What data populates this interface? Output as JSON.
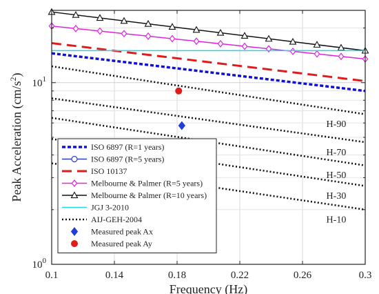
{
  "chart_data": {
    "type": "line",
    "xlabel": "Frequency (Hz)",
    "ylabel": "Peak Acceleration (cm/s",
    "ylabel_sup": "2",
    "ylabel_close": ")",
    "xlim": [
      0.1,
      0.3
    ],
    "ylim": [
      1,
      25
    ],
    "y_scale": "log",
    "grid": true,
    "legend_position": "bottom-left",
    "x_ticks": [
      0.1,
      0.14,
      0.18,
      0.22,
      0.26,
      0.3
    ],
    "x_tick_labels": [
      "0.1",
      "0.14",
      "0.18",
      "0.22",
      "0.26",
      "0.3"
    ],
    "y_ticks": [
      1,
      10
    ],
    "y_tick_base": "10",
    "y_tick_exps": [
      "0",
      "1"
    ],
    "series": [
      {
        "name": "ISO 6897 (R=1 years)",
        "color": "#1010d0",
        "style": "dashed-thick",
        "marker": "none",
        "x": [
          0.1,
          0.3
        ],
        "y": [
          14.5,
          9.0
        ]
      },
      {
        "name": "ISO 6897 (R=5 years)",
        "color": "#2a3fbf",
        "style": "solid",
        "marker": "circle-open",
        "x": [],
        "y": []
      },
      {
        "name": "ISO 10137",
        "color": "#e01b1b",
        "style": "dashed-long",
        "marker": "none",
        "x": [
          0.1,
          0.3
        ],
        "y": [
          16.5,
          10.2
        ]
      },
      {
        "name": "Melbourne & Palmer (R=5 years)",
        "color": "#e020e0",
        "style": "solid",
        "marker": "diamond-open",
        "x": [
          0.1,
          0.3
        ],
        "y": [
          20.5,
          13.5
        ]
      },
      {
        "name": "Melbourne & Palmer (R=10 years)",
        "color": "#111111",
        "style": "solid",
        "marker": "triangle-open",
        "x": [
          0.1,
          0.3
        ],
        "y": [
          24.5,
          15.0
        ]
      },
      {
        "name": "JGJ 3-2010",
        "color": "#22d5e0",
        "style": "solid",
        "marker": "none",
        "x": [
          0.1,
          0.3
        ],
        "y": [
          15.0,
          15.0
        ]
      },
      {
        "name": "AIJ-GEH-2004",
        "color": "#111111",
        "style": "dotted",
        "marker": "none",
        "x": [],
        "y": []
      },
      {
        "name": "Measured peak Ax",
        "color": "#1f3fd6",
        "style": "none",
        "marker": "diamond-filled",
        "x": [
          0.183
        ],
        "y": [
          5.8
        ]
      },
      {
        "name": "Measured peak Ay",
        "color": "#e01b1b",
        "style": "none",
        "marker": "circle-filled",
        "x": [
          0.181
        ],
        "y": [
          9.0
        ]
      }
    ],
    "aij_curves": [
      {
        "label": "H-90",
        "x": [
          0.1,
          0.3
        ],
        "y": [
          12.3,
          6.7
        ]
      },
      {
        "label": "H-70",
        "x": [
          0.1,
          0.3
        ],
        "y": [
          8.2,
          4.7
        ]
      },
      {
        "label": "H-50",
        "x": [
          0.1,
          0.3
        ],
        "y": [
          6.4,
          3.5
        ]
      },
      {
        "label": "H-30",
        "x": [
          0.1,
          0.3
        ],
        "y": [
          4.9,
          2.7
        ]
      },
      {
        "label": "H-10",
        "x": [
          0.1,
          0.3
        ],
        "y": [
          3.6,
          2.0
        ]
      }
    ]
  }
}
